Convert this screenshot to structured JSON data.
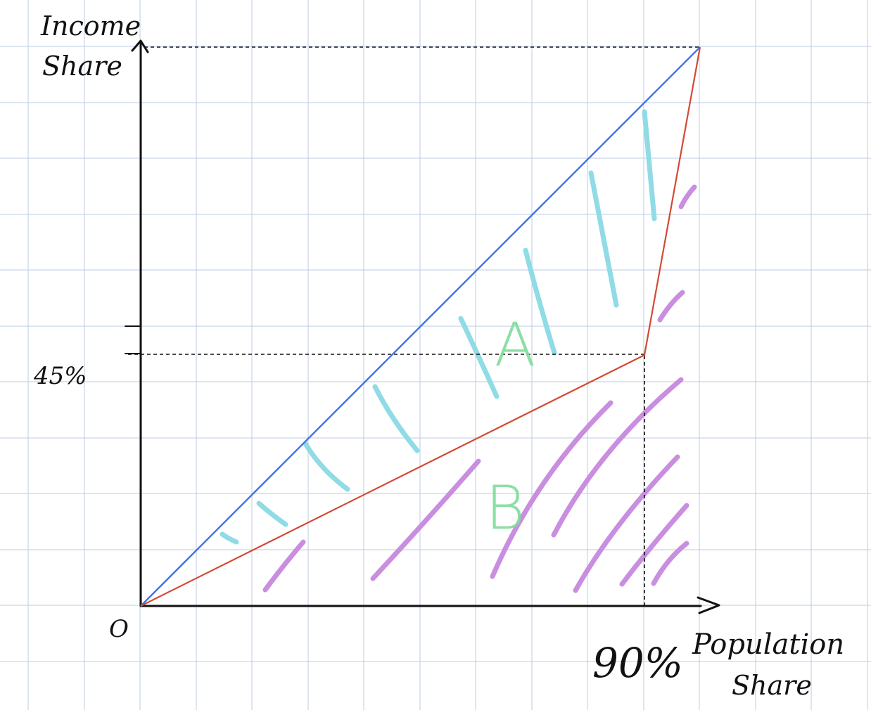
{
  "labels": {
    "y_axis_line1": "Income",
    "y_axis_line2": "Share",
    "x_axis_line1": "Population",
    "x_axis_line2": "Share",
    "origin": "O",
    "y_marker": "45%",
    "x_marker": "90%",
    "region_a": "A",
    "region_b": "B"
  },
  "values": {
    "population_share_at_kink": 0.9,
    "income_share_at_kink": 0.45
  },
  "colors": {
    "grid": "#bccbe3",
    "axes": "#111111",
    "equality_line": "#3f74e6",
    "lorenz_curve": "#d24a34",
    "hatch_a": "#8fdbe6",
    "hatch_b": "#c98ee0",
    "region_label": "#7fdb9a"
  }
}
